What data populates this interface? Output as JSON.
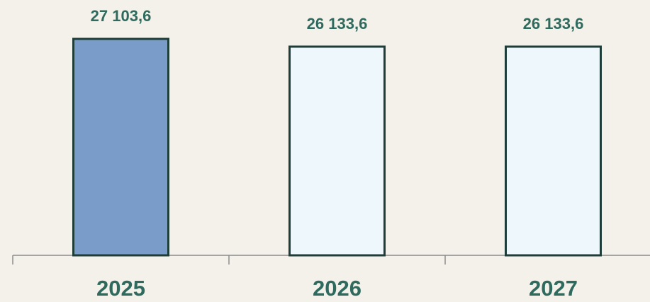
{
  "chart_data": {
    "type": "bar",
    "categories": [
      "2025",
      "2026",
      "2027"
    ],
    "values": [
      27103.6,
      26133.6,
      26133.6
    ],
    "value_labels": [
      "27 103,6",
      "26 133,6",
      "26 133,6"
    ],
    "colors": [
      "#7a9cc8",
      "#eef7fc",
      "#eef7fc"
    ],
    "edgecolor": "#1f3d38",
    "label_color": "#2f6a5e"
  }
}
